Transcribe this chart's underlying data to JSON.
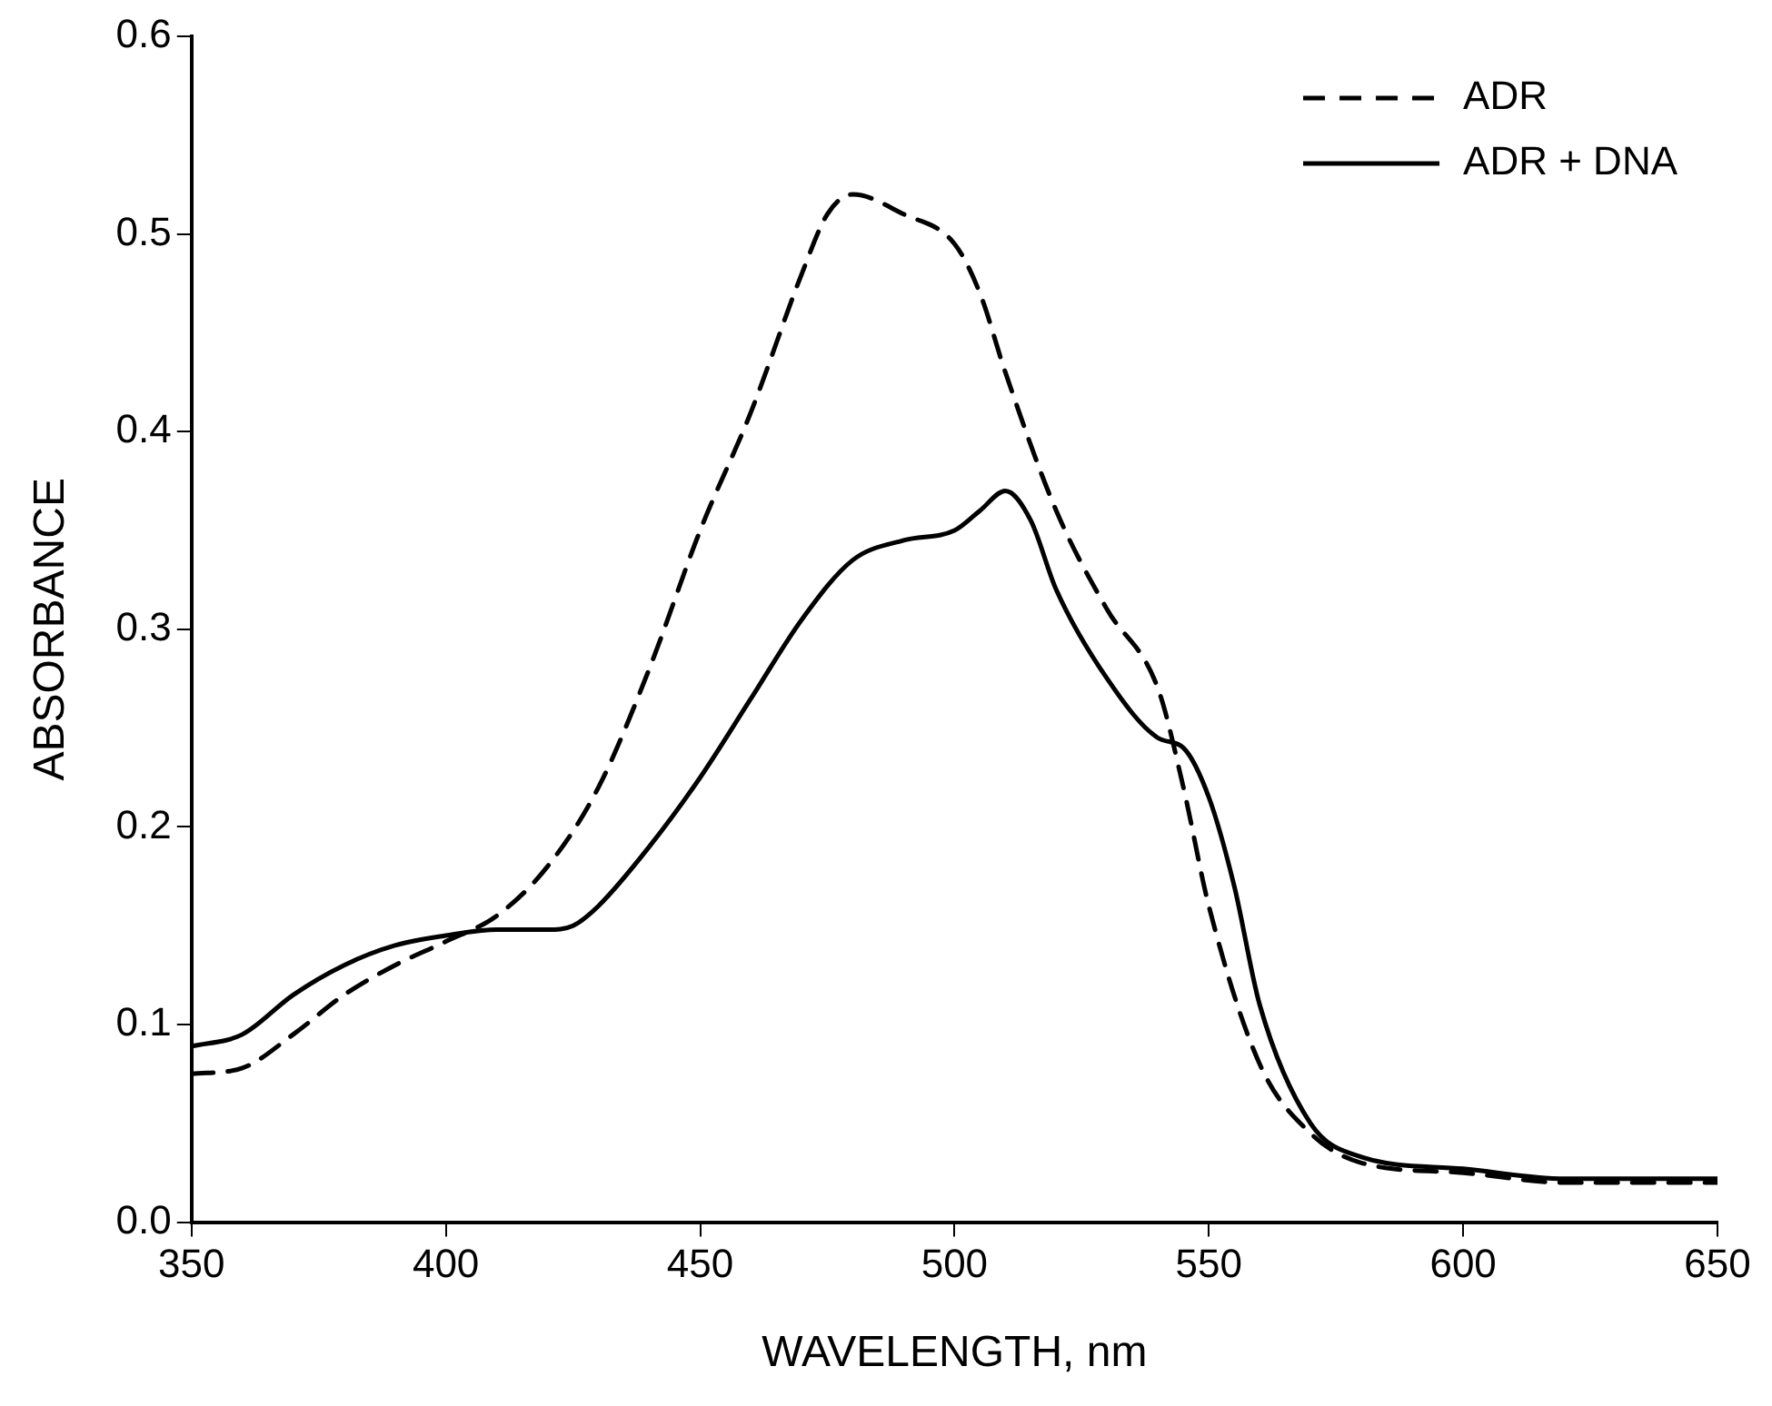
{
  "chart_data": {
    "type": "line",
    "xlabel": "WAVELENGTH, nm",
    "ylabel": "ABSORBANCE",
    "xlim": [
      350,
      650
    ],
    "xticks": [
      350,
      400,
      450,
      500,
      550,
      600,
      650
    ],
    "ylim": [
      0,
      0.6
    ],
    "yticks": [
      {
        "value": 0,
        "label": "0.0"
      },
      0.1,
      0.2,
      0.3,
      0.4,
      0.5,
      0.6
    ],
    "grid": false,
    "legend": "top right",
    "marker": "none",
    "series": [
      {
        "name": "ADR",
        "color": "#000000",
        "line_style": "dashed",
        "x": [
          350,
          360,
          370,
          380,
          390,
          400,
          410,
          420,
          430,
          440,
          450,
          460,
          470,
          475,
          480,
          490,
          500,
          505,
          510,
          520,
          530,
          540,
          545,
          550,
          560,
          570,
          580,
          600,
          620,
          650
        ],
        "values": [
          0.075,
          0.078,
          0.095,
          0.115,
          0.13,
          0.142,
          0.155,
          0.18,
          0.22,
          0.28,
          0.35,
          0.41,
          0.48,
          0.51,
          0.52,
          0.51,
          0.495,
          0.47,
          0.43,
          0.36,
          0.31,
          0.27,
          0.22,
          0.16,
          0.08,
          0.045,
          0.03,
          0.025,
          0.02,
          0.02
        ]
      },
      {
        "name": "ADR + DNA",
        "color": "#000000",
        "line_style": "solid",
        "x": [
          350,
          360,
          370,
          380,
          390,
          400,
          410,
          420,
          425,
          430,
          440,
          450,
          460,
          470,
          480,
          490,
          500,
          505,
          510,
          515,
          520,
          530,
          540,
          545,
          550,
          555,
          560,
          570,
          580,
          600,
          620,
          650
        ],
        "values": [
          0.089,
          0.095,
          0.115,
          0.13,
          0.14,
          0.145,
          0.148,
          0.148,
          0.15,
          0.16,
          0.19,
          0.225,
          0.265,
          0.305,
          0.335,
          0.345,
          0.35,
          0.36,
          0.37,
          0.355,
          0.32,
          0.275,
          0.245,
          0.24,
          0.215,
          0.17,
          0.11,
          0.05,
          0.033,
          0.027,
          0.022,
          0.022
        ]
      }
    ]
  }
}
